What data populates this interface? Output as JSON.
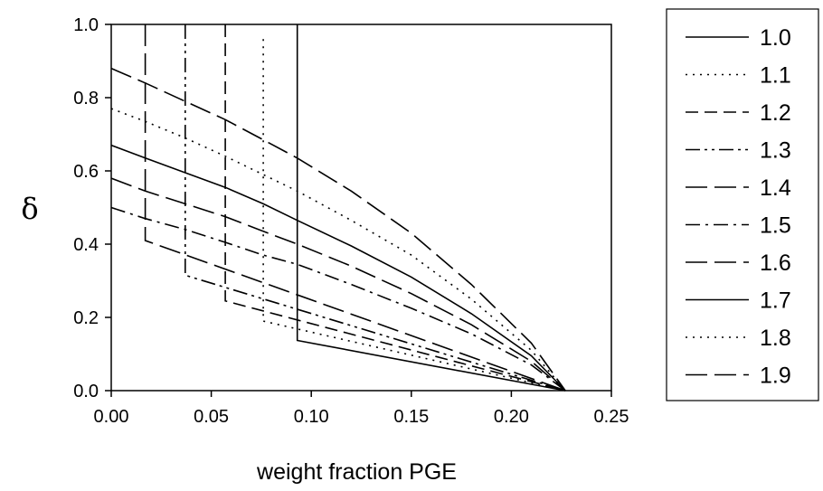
{
  "chart_data": {
    "type": "line",
    "title": "",
    "xlabel": "weight fraction PGE",
    "ylabel": "δ",
    "xlim": [
      0,
      0.25
    ],
    "ylim": [
      0,
      1.0
    ],
    "xticks": [
      "0.00",
      "0.05",
      "0.10",
      "0.15",
      "0.20",
      "0.25"
    ],
    "yticks": [
      "0.0",
      "0.2",
      "0.4",
      "0.6",
      "0.8",
      "1.0"
    ],
    "legend_position": "right",
    "grid": false,
    "series": [
      {
        "name": "1.0",
        "dash": "solid",
        "points": [
          [
            0.093,
            1.0
          ],
          [
            0.093,
            0.137
          ],
          [
            0.227,
            0.0
          ]
        ]
      },
      {
        "name": "1.1",
        "dash": "dot",
        "points": [
          [
            0.076,
            0.96
          ],
          [
            0.076,
            0.19
          ],
          [
            0.227,
            0.0
          ]
        ]
      },
      {
        "name": "1.2",
        "dash": "dash",
        "points": [
          [
            0.057,
            1.0
          ],
          [
            0.057,
            0.245
          ],
          [
            0.227,
            0.0
          ]
        ]
      },
      {
        "name": "1.3",
        "dash": "dashdotdot",
        "points": [
          [
            0.037,
            1.0
          ],
          [
            0.037,
            0.315
          ],
          [
            0.227,
            0.0
          ]
        ]
      },
      {
        "name": "1.4",
        "dash": "longdash",
        "points": [
          [
            0.017,
            1.0
          ],
          [
            0.017,
            0.41
          ],
          [
            0.227,
            0.0
          ]
        ]
      },
      {
        "name": "1.5",
        "dash": "dashdot",
        "points": [
          [
            0.0,
            0.5
          ],
          [
            0.017,
            0.47
          ],
          [
            0.037,
            0.44
          ],
          [
            0.057,
            0.405
          ],
          [
            0.076,
            0.37
          ],
          [
            0.093,
            0.345
          ],
          [
            0.12,
            0.29
          ],
          [
            0.15,
            0.225
          ],
          [
            0.18,
            0.155
          ],
          [
            0.21,
            0.07
          ],
          [
            0.227,
            0.0
          ]
        ]
      },
      {
        "name": "1.6",
        "dash": "longdash",
        "points": [
          [
            0.0,
            0.58
          ],
          [
            0.017,
            0.545
          ],
          [
            0.037,
            0.51
          ],
          [
            0.057,
            0.475
          ],
          [
            0.076,
            0.435
          ],
          [
            0.093,
            0.4
          ],
          [
            0.12,
            0.34
          ],
          [
            0.15,
            0.265
          ],
          [
            0.18,
            0.18
          ],
          [
            0.21,
            0.08
          ],
          [
            0.227,
            0.0
          ]
        ]
      },
      {
        "name": "1.7",
        "dash": "solid",
        "points": [
          [
            0.0,
            0.67
          ],
          [
            0.017,
            0.635
          ],
          [
            0.037,
            0.595
          ],
          [
            0.057,
            0.555
          ],
          [
            0.076,
            0.51
          ],
          [
            0.093,
            0.465
          ],
          [
            0.12,
            0.395
          ],
          [
            0.15,
            0.31
          ],
          [
            0.18,
            0.21
          ],
          [
            0.21,
            0.095
          ],
          [
            0.227,
            0.0
          ]
        ]
      },
      {
        "name": "1.8",
        "dash": "dot",
        "points": [
          [
            0.0,
            0.77
          ],
          [
            0.017,
            0.735
          ],
          [
            0.037,
            0.69
          ],
          [
            0.057,
            0.64
          ],
          [
            0.076,
            0.59
          ],
          [
            0.093,
            0.545
          ],
          [
            0.12,
            0.465
          ],
          [
            0.15,
            0.37
          ],
          [
            0.18,
            0.25
          ],
          [
            0.21,
            0.11
          ],
          [
            0.227,
            0.0
          ]
        ]
      },
      {
        "name": "1.9",
        "dash": "longdash",
        "points": [
          [
            0.0,
            0.88
          ],
          [
            0.017,
            0.84
          ],
          [
            0.037,
            0.79
          ],
          [
            0.057,
            0.74
          ],
          [
            0.076,
            0.685
          ],
          [
            0.093,
            0.635
          ],
          [
            0.12,
            0.545
          ],
          [
            0.15,
            0.43
          ],
          [
            0.18,
            0.29
          ],
          [
            0.21,
            0.13
          ],
          [
            0.227,
            0.0
          ]
        ]
      }
    ]
  }
}
